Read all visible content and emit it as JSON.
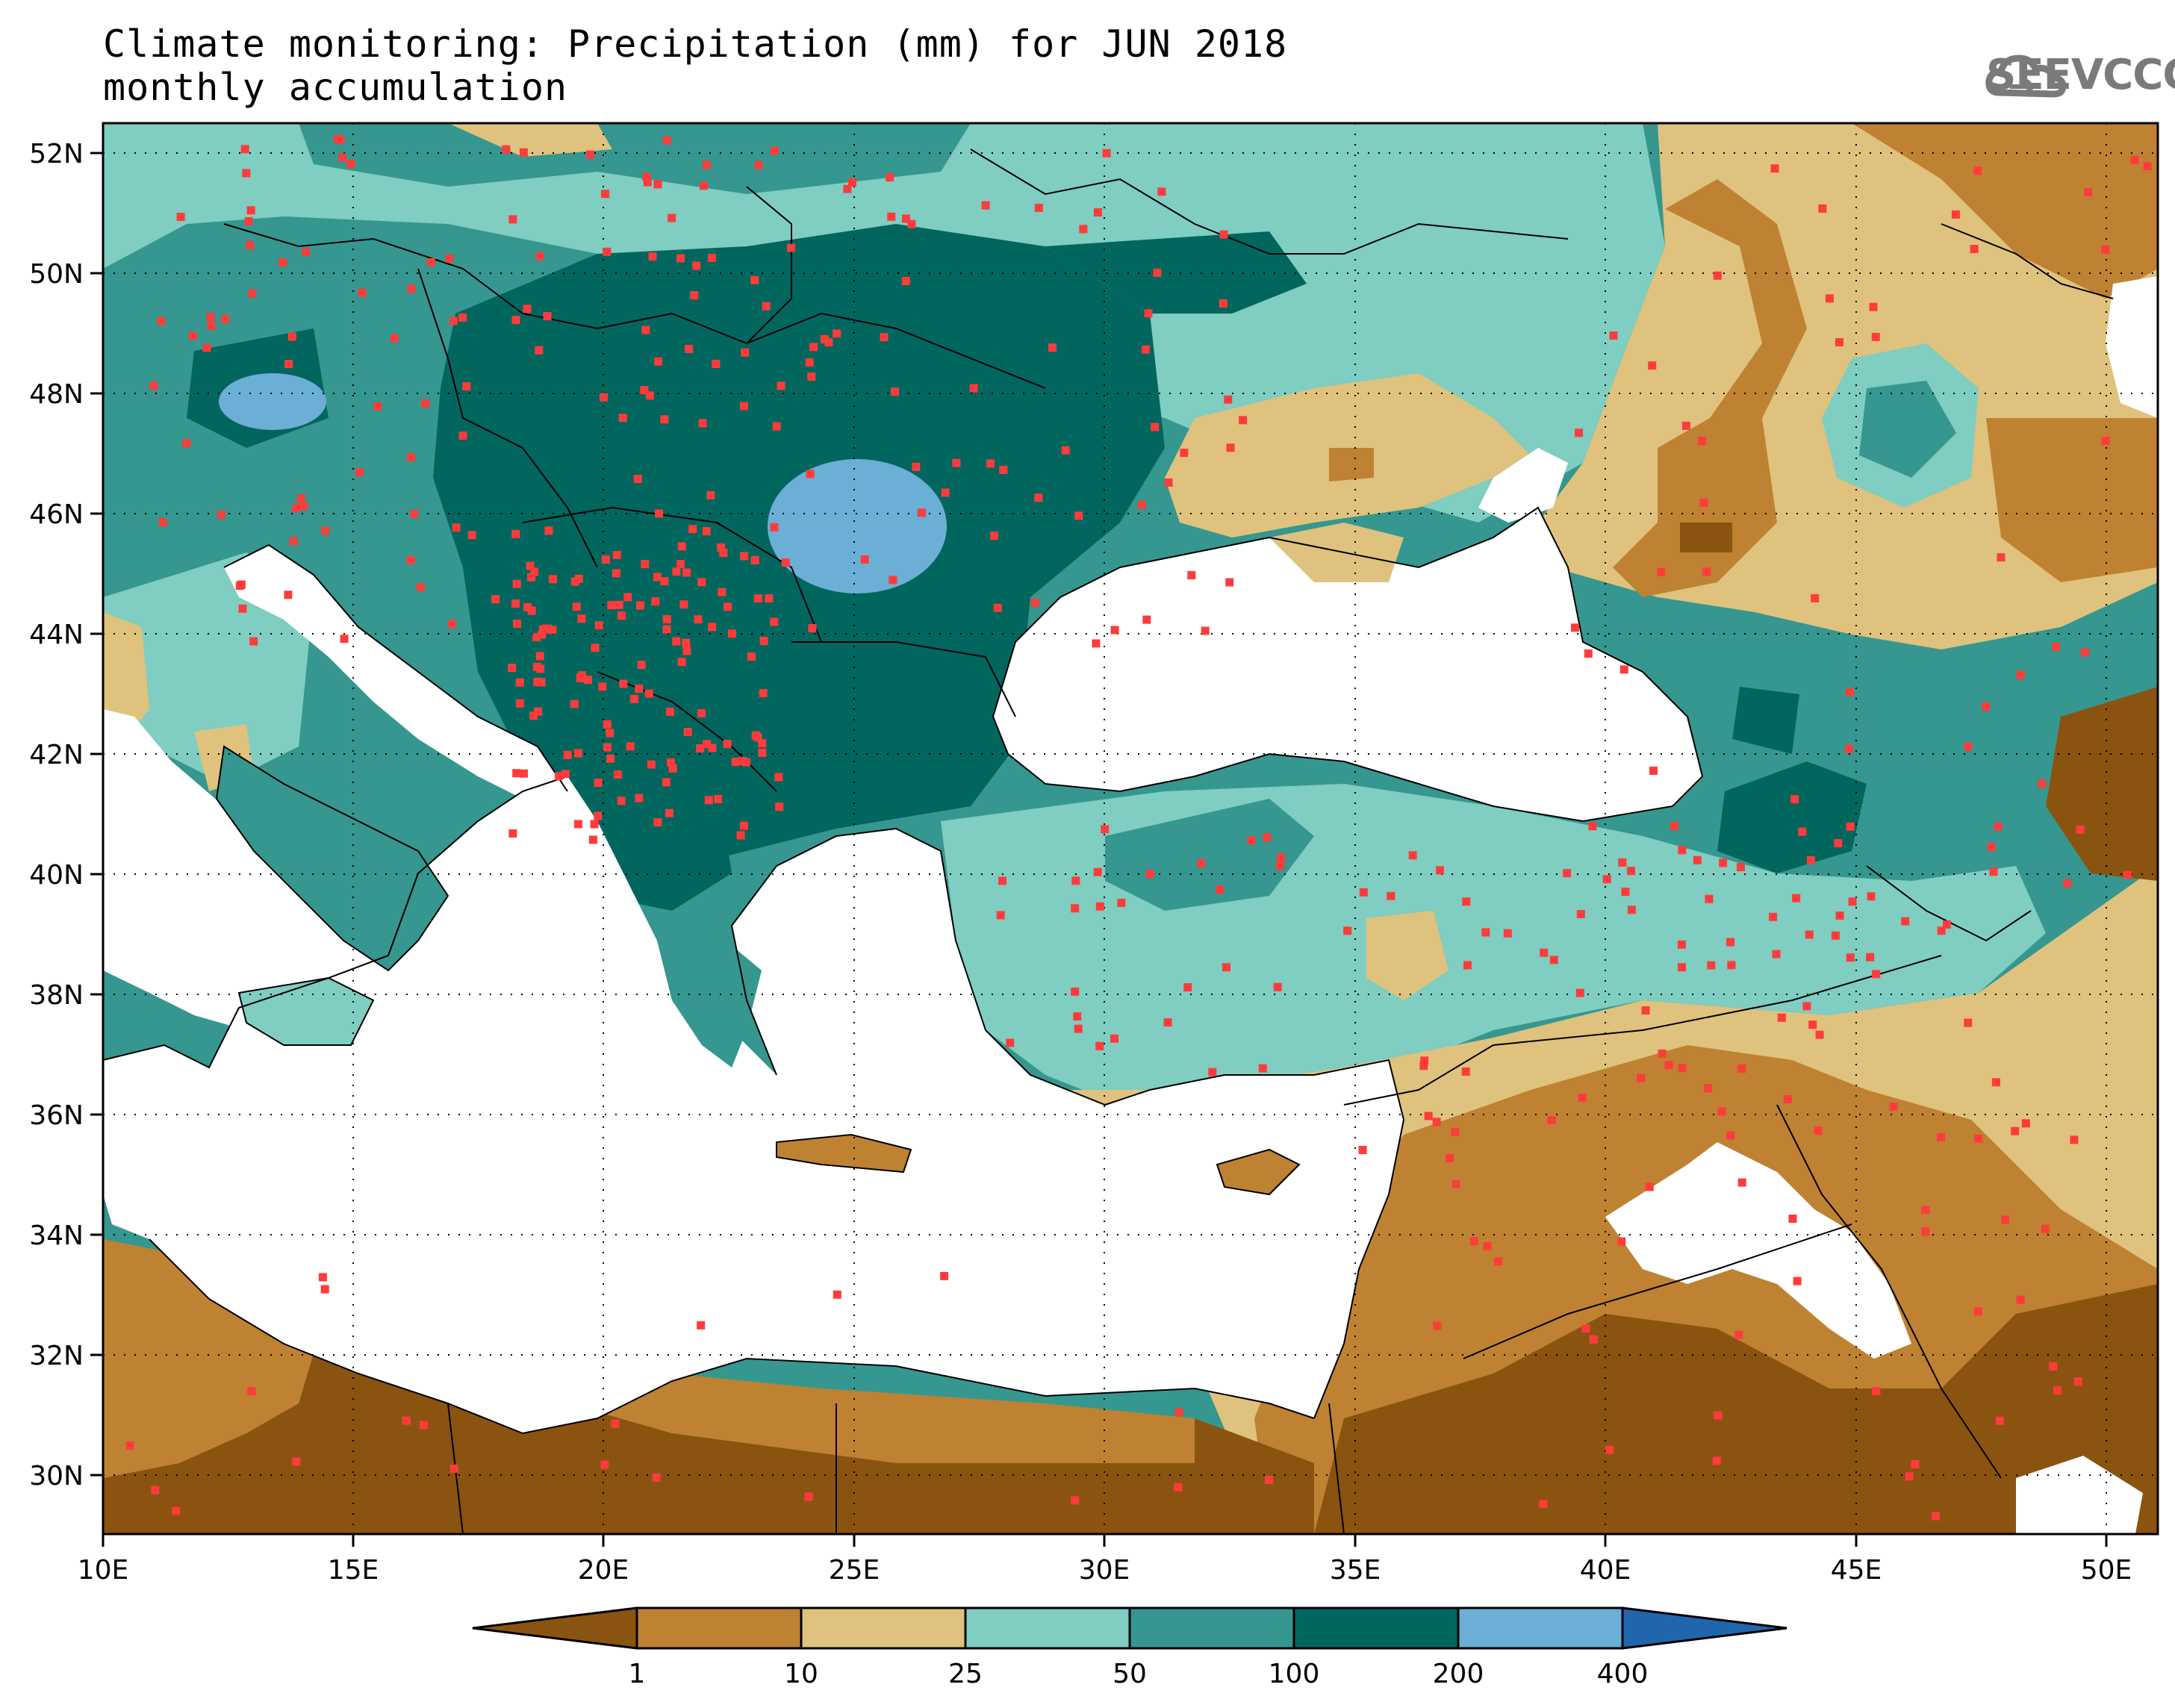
{
  "header": {
    "title_line1": "Climate monitoring: Precipitation (mm) for JUN 2018",
    "title_line2": "monthly accumulation",
    "logo_text": "SEEVCCC",
    "logo_icon": "cloud-icon"
  },
  "map": {
    "lon_labels": [
      "10E",
      "15E",
      "20E",
      "25E",
      "30E",
      "35E",
      "40E",
      "45E",
      "50E"
    ],
    "lat_labels": [
      "52N",
      "50N",
      "48N",
      "46N",
      "44N",
      "42N",
      "40N",
      "38N",
      "36N",
      "34N",
      "32N",
      "30N"
    ],
    "lon_range": [
      10,
      51
    ],
    "lat_range": [
      29,
      52.5
    ],
    "gridlines": "dotted",
    "sea_color": "#ffffff"
  },
  "legend": {
    "breaks": [
      "1",
      "10",
      "25",
      "50",
      "100",
      "200",
      "400"
    ],
    "colors": [
      "#8B5310",
      "#BE8232",
      "#DFC27D",
      "#80CDC1",
      "#35978F",
      "#01665E",
      "#6BAED6",
      "#2166AC"
    ]
  },
  "colors": {
    "station": "#ff3b3b",
    "border": "#000000"
  }
}
